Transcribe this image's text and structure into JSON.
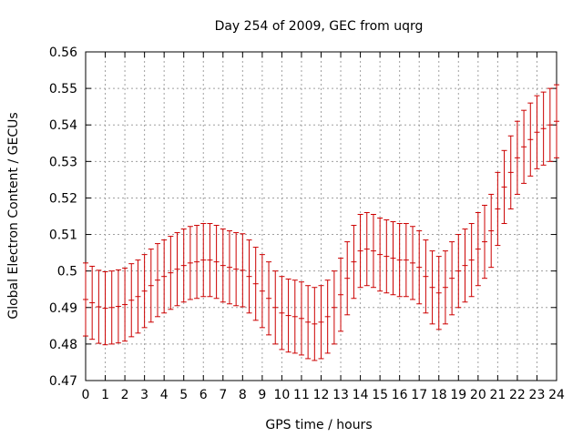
{
  "chart_data": {
    "type": "scatter",
    "title": "Day 254 of 2009, GEC from uqrg",
    "xlabel": "GPS time / hours",
    "ylabel": "Global Electron Content / GECUs",
    "xlim": [
      0,
      24
    ],
    "ylim": [
      0.47,
      0.56
    ],
    "x_ticks": [
      "0",
      "1",
      "2",
      "3",
      "4",
      "5",
      "6",
      "7",
      "8",
      "9",
      "10",
      "11",
      "12",
      "13",
      "14",
      "15",
      "16",
      "17",
      "18",
      "19",
      "20",
      "21",
      "22",
      "23",
      "24"
    ],
    "y_ticks": [
      "0.47",
      "0.48",
      "0.49",
      "0.5",
      "0.51",
      "0.52",
      "0.53",
      "0.54",
      "0.55",
      "0.56"
    ],
    "grid": true,
    "error_bar": 0.01,
    "series": [
      {
        "color": "#cc0000",
        "x": [
          0.0,
          0.333,
          0.667,
          1.0,
          1.333,
          1.667,
          2.0,
          2.333,
          2.667,
          3.0,
          3.333,
          3.667,
          4.0,
          4.333,
          4.667,
          5.0,
          5.333,
          5.667,
          6.0,
          6.333,
          6.667,
          7.0,
          7.333,
          7.667,
          8.0,
          8.333,
          8.667,
          9.0,
          9.333,
          9.667,
          10.0,
          10.333,
          10.667,
          11.0,
          11.333,
          11.667,
          12.0,
          12.333,
          12.667,
          13.0,
          13.333,
          13.667,
          14.0,
          14.333,
          14.667,
          15.0,
          15.333,
          15.667,
          16.0,
          16.333,
          16.667,
          17.0,
          17.333,
          17.667,
          18.0,
          18.333,
          18.667,
          19.0,
          19.333,
          19.667,
          20.0,
          20.333,
          20.667,
          21.0,
          21.333,
          21.667,
          22.0,
          22.333,
          22.667,
          23.0,
          23.333,
          23.667,
          24.0
        ],
        "y": [
          0.4922,
          0.4913,
          0.4902,
          0.4898,
          0.49,
          0.4903,
          0.4908,
          0.492,
          0.493,
          0.4945,
          0.496,
          0.4975,
          0.4985,
          0.4995,
          0.5005,
          0.5015,
          0.5022,
          0.5025,
          0.503,
          0.503,
          0.5025,
          0.5015,
          0.501,
          0.5005,
          0.5002,
          0.4985,
          0.4965,
          0.4945,
          0.4925,
          0.49,
          0.4885,
          0.4878,
          0.4875,
          0.487,
          0.486,
          0.4855,
          0.486,
          0.4875,
          0.49,
          0.4935,
          0.498,
          0.5025,
          0.5055,
          0.506,
          0.5055,
          0.5045,
          0.504,
          0.5035,
          0.503,
          0.503,
          0.5022,
          0.501,
          0.4985,
          0.4955,
          0.494,
          0.4955,
          0.498,
          0.5,
          0.5015,
          0.503,
          0.506,
          0.508,
          0.511,
          0.517,
          0.523,
          0.527,
          0.531,
          0.534,
          0.536,
          0.538,
          0.539,
          0.54,
          0.541
        ]
      }
    ]
  }
}
